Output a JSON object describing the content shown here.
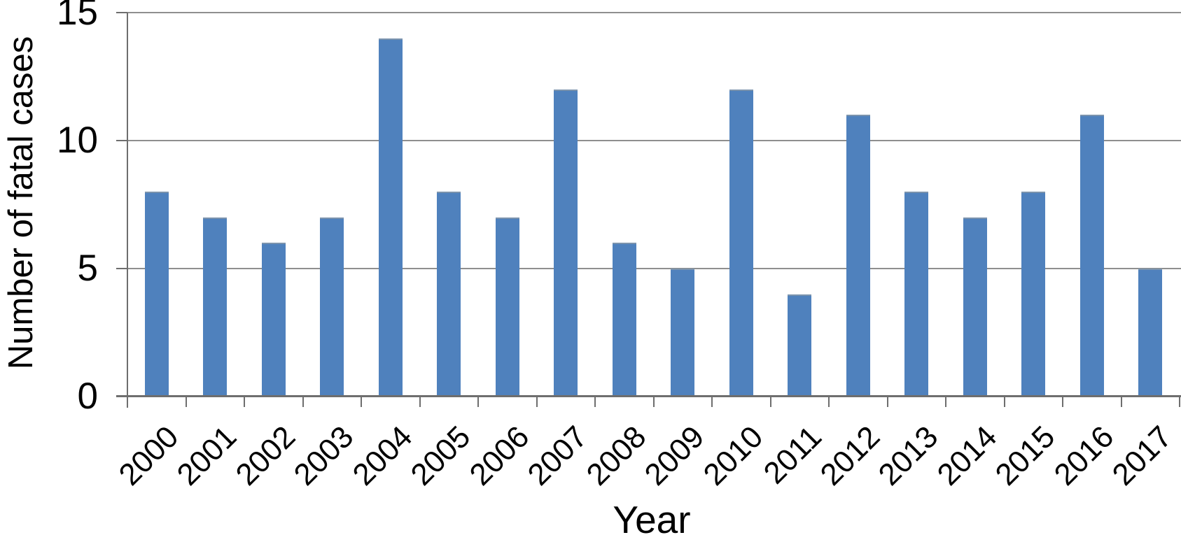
{
  "chart_data": {
    "type": "bar",
    "xlabel": "Year",
    "ylabel": "Number of fatal cases",
    "categories": [
      "2000",
      "2001",
      "2002",
      "2003",
      "2004",
      "2005",
      "2006",
      "2007",
      "2008",
      "2009",
      "2010",
      "2011",
      "2012",
      "2013",
      "2014",
      "2015",
      "2016",
      "2017"
    ],
    "values": [
      8,
      7,
      6,
      7,
      14,
      8,
      7,
      12,
      6,
      5,
      12,
      4,
      11,
      8,
      7,
      8,
      11,
      5
    ],
    "ylim": [
      0,
      15
    ],
    "yticks": [
      0,
      5,
      10,
      15
    ],
    "grid": "horizontal",
    "legend": "none",
    "bar_color": "#4f81bd",
    "bar_top_edge_color": "#7b93ad",
    "gridline_color": "#8f8f8f",
    "axis_color": "#6e6e6e",
    "label_color": "#000000"
  }
}
